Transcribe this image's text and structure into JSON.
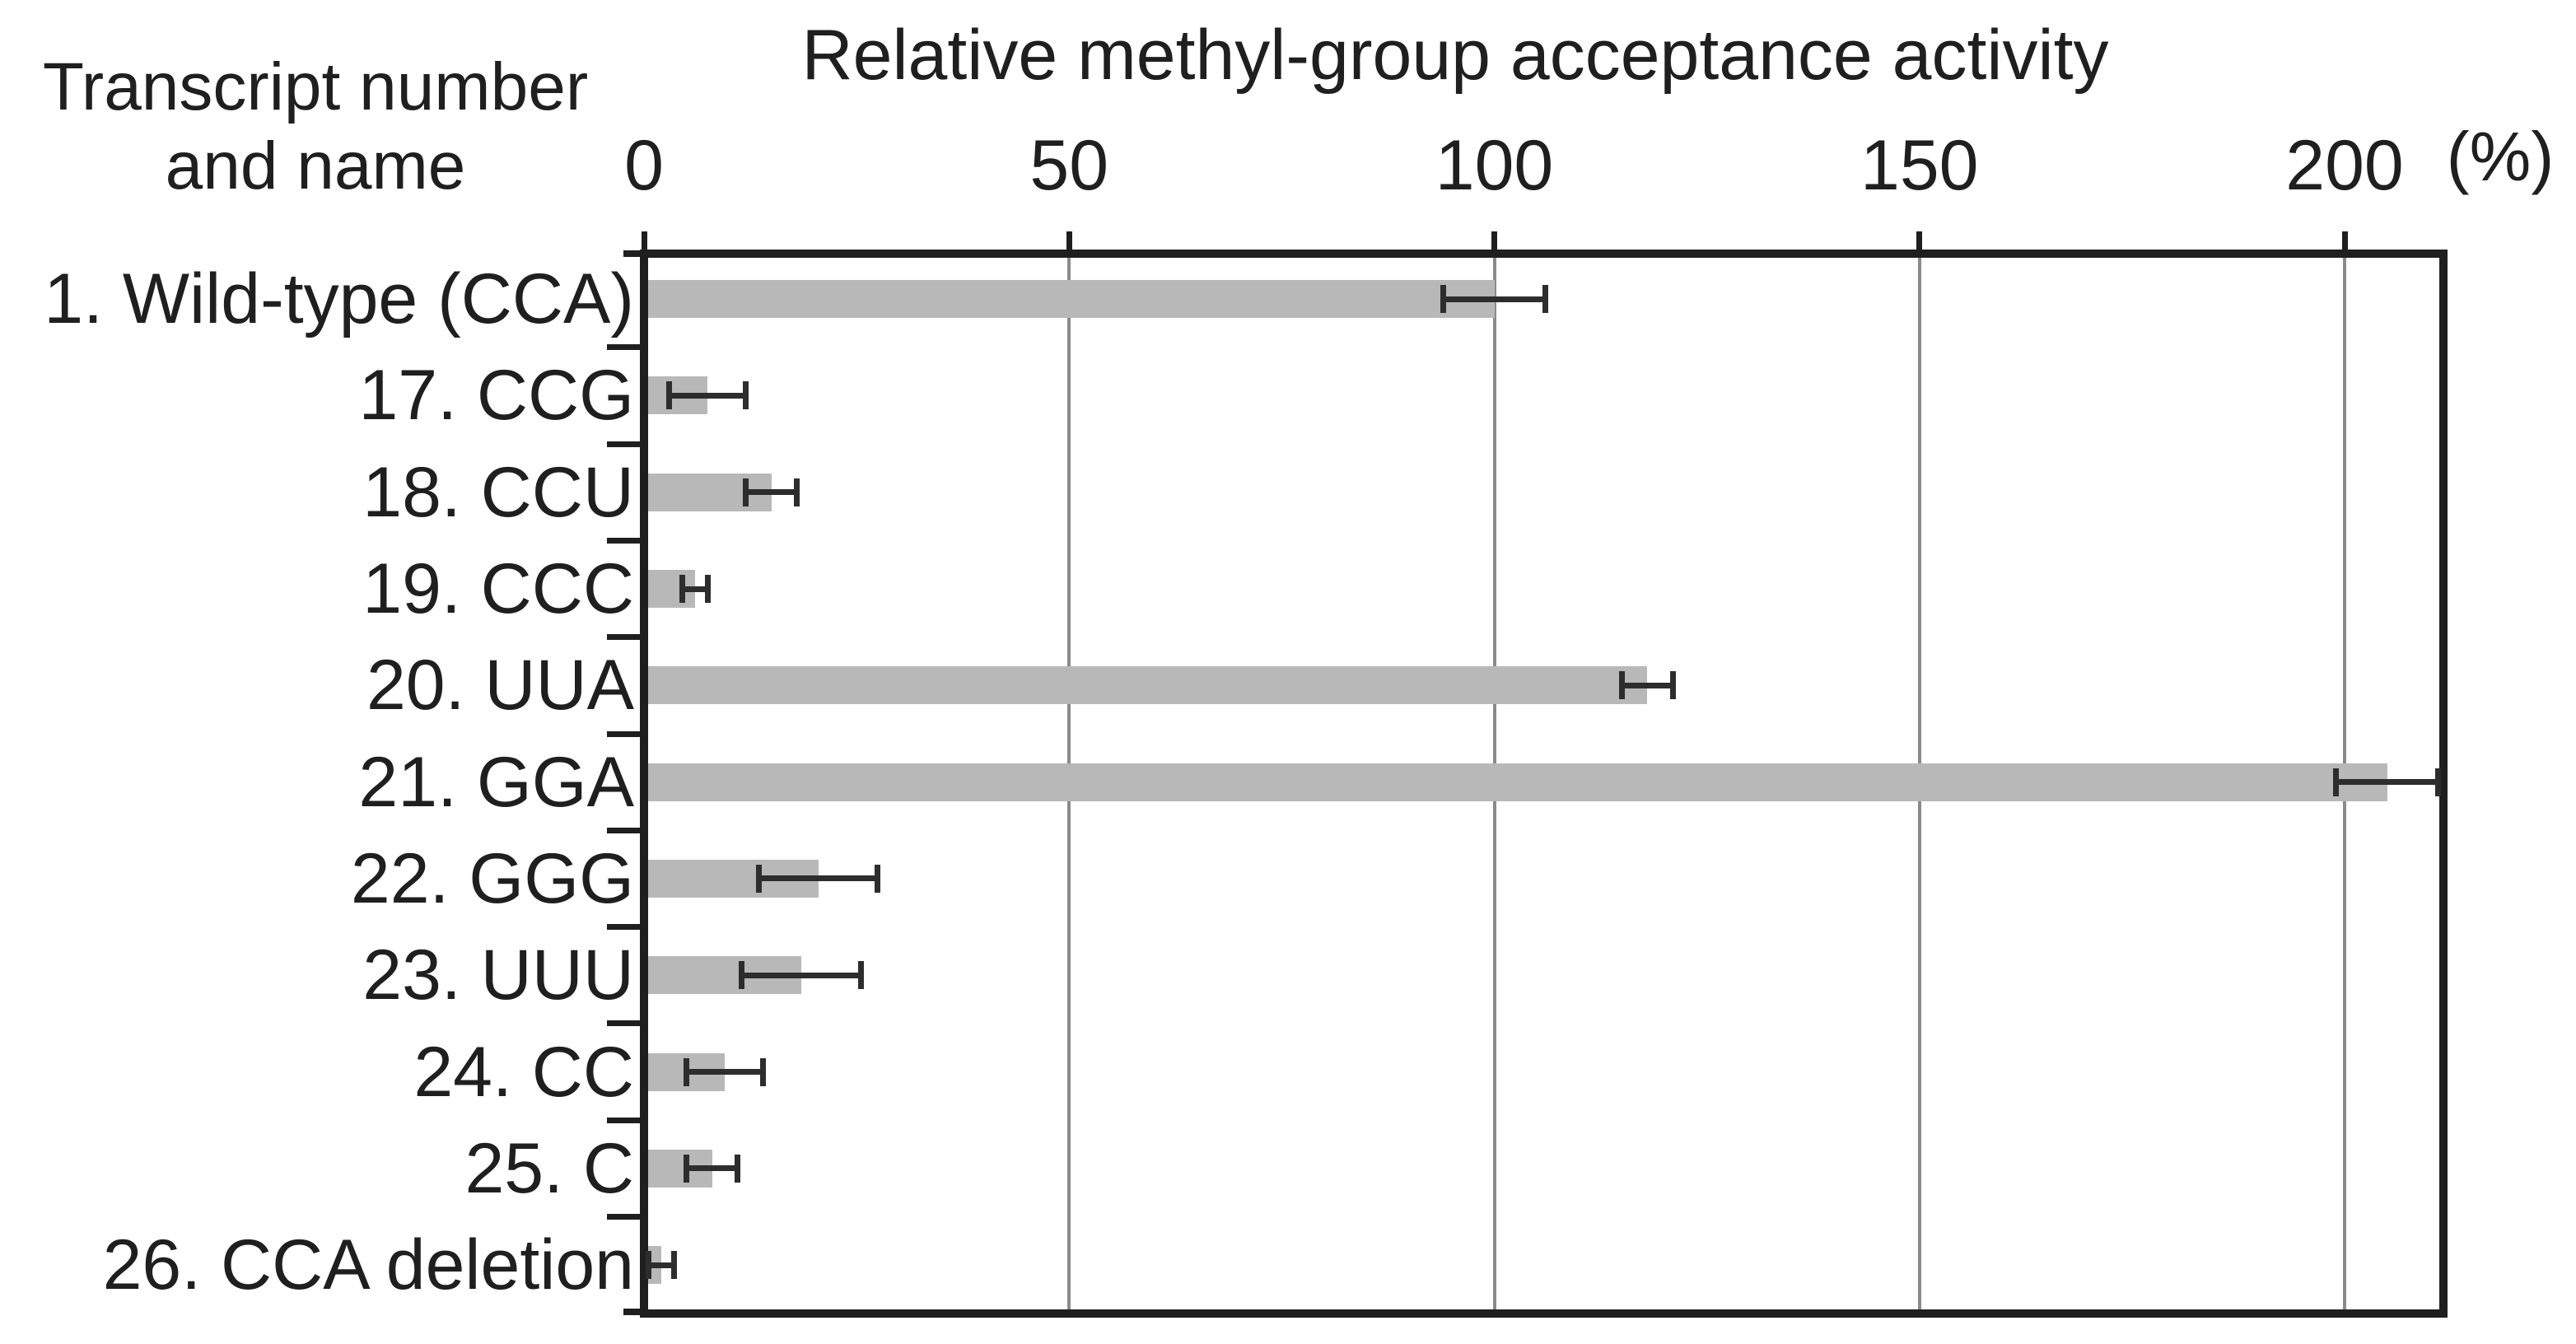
{
  "header": {
    "line1": "Transcript number",
    "line2": "and name"
  },
  "axis": {
    "unit_label": "(%)"
  },
  "colors": {
    "bar": "#b8b8b8",
    "error_bar": "#2d2d2d",
    "frame": "#1f1f1f",
    "gridline": "#8a8a8a",
    "text": "#1f1f1f",
    "background": "#ffffff"
  },
  "chart_data": {
    "type": "bar",
    "orientation": "horizontal",
    "title": "Relative methyl-group acceptance activity",
    "xlabel": "Relative methyl-group acceptance activity (%)",
    "ylabel": "Transcript number and name",
    "value_unit": "%",
    "x_ticks": [
      0,
      50,
      100,
      150,
      200
    ],
    "xlim": [
      0,
      211
    ],
    "grid": "vertical gridlines at 50, 100, 150, 200",
    "legend_position": "none",
    "error_bars": "symmetric, capped",
    "categories": [
      "1. Wild-type (CCA)",
      "17. CCG",
      "18. CCU",
      "19. CCC",
      "20. UUA",
      "21. GGA",
      "22. GGG",
      "23. UUU",
      "24. CC",
      "25. C",
      "26. CCA deletion"
    ],
    "series": [
      {
        "name": "Relative methyl-group acceptance activity",
        "values": [
          100,
          7.5,
          15,
          6,
          118,
          205,
          20.5,
          18.5,
          9.5,
          8,
          2
        ],
        "errors": [
          6,
          4.5,
          3,
          1.5,
          3,
          6,
          7,
          7,
          4.5,
          3,
          1.5
        ]
      }
    ]
  }
}
